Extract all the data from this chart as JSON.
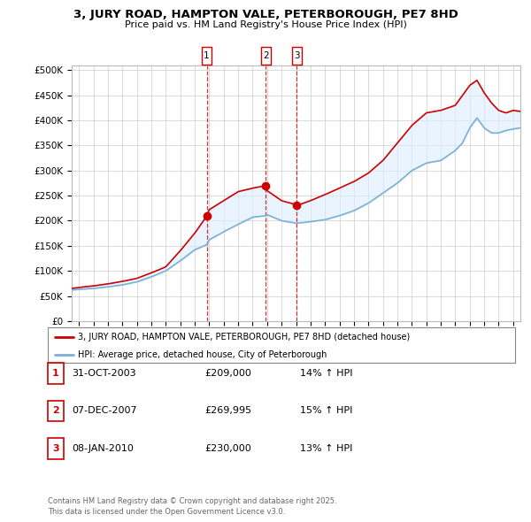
{
  "title": "3, JURY ROAD, HAMPTON VALE, PETERBOROUGH, PE7 8HD",
  "subtitle": "Price paid vs. HM Land Registry's House Price Index (HPI)",
  "legend_label_red": "3, JURY ROAD, HAMPTON VALE, PETERBOROUGH, PE7 8HD (detached house)",
  "legend_label_blue": "HPI: Average price, detached house, City of Peterborough",
  "ylim": [
    0,
    510000
  ],
  "yticks": [
    0,
    50000,
    100000,
    150000,
    200000,
    250000,
    300000,
    350000,
    400000,
    450000,
    500000
  ],
  "ytick_labels": [
    "£0",
    "£50K",
    "£100K",
    "£150K",
    "£200K",
    "£250K",
    "£300K",
    "£350K",
    "£400K",
    "£450K",
    "£500K"
  ],
  "xlim": [
    1994.5,
    2025.5
  ],
  "transactions": [
    {
      "num": "1",
      "date": "31-OCT-2003",
      "price": 209000,
      "hpi_pct": "14%",
      "x": 2003.83
    },
    {
      "num": "2",
      "date": "07-DEC-2007",
      "price": 269995,
      "hpi_pct": "15%",
      "x": 2007.92
    },
    {
      "num": "3",
      "date": "08-JAN-2010",
      "price": 230000,
      "hpi_pct": "13%",
      "x": 2010.04
    }
  ],
  "transaction_table": [
    [
      "1",
      "31-OCT-2003",
      "£209,000",
      "14% ↑ HPI"
    ],
    [
      "2",
      "07-DEC-2007",
      "£269,995",
      "15% ↑ HPI"
    ],
    [
      "3",
      "08-JAN-2010",
      "£230,000",
      "13% ↑ HPI"
    ]
  ],
  "footer": "Contains HM Land Registry data © Crown copyright and database right 2025.\nThis data is licensed under the Open Government Licence v3.0.",
  "color_red": "#cc0000",
  "color_blue": "#7bafd4",
  "color_vline": "#cc0000",
  "color_fill": "#ddeeff",
  "background_color": "#ffffff",
  "grid_color": "#cccccc",
  "hpi_ctrl_x": [
    1994.5,
    1995,
    1996,
    1997,
    1998,
    1999,
    2000,
    2001,
    2002,
    2003,
    2003.83,
    2004,
    2005,
    2006,
    2007,
    2007.92,
    2008,
    2009,
    2010,
    2010.04,
    2011,
    2012,
    2013,
    2014,
    2015,
    2016,
    2017,
    2018,
    2019,
    2020,
    2021,
    2021.5,
    2022,
    2022.5,
    2023,
    2023.5,
    2024,
    2024.5,
    2025,
    2025.5
  ],
  "hpi_ctrl_y": [
    62000,
    63000,
    65000,
    68000,
    72000,
    78000,
    88000,
    100000,
    120000,
    142000,
    152000,
    162000,
    178000,
    193000,
    207000,
    210000,
    212000,
    200000,
    195000,
    195000,
    198000,
    202000,
    210000,
    220000,
    235000,
    255000,
    275000,
    300000,
    315000,
    320000,
    340000,
    355000,
    385000,
    405000,
    385000,
    375000,
    375000,
    380000,
    383000,
    385000
  ],
  "price_ctrl_x": [
    1994.5,
    1995,
    1996,
    1997,
    1998,
    1999,
    2000,
    2001,
    2002,
    2003,
    2003.83,
    2004,
    2005,
    2006,
    2007,
    2007.92,
    2008,
    2009,
    2010,
    2010.04,
    2011,
    2012,
    2013,
    2014,
    2015,
    2016,
    2017,
    2018,
    2019,
    2020,
    2021,
    2021.5,
    2022,
    2022.5,
    2023,
    2023.5,
    2024,
    2024.5,
    2025,
    2025.5
  ],
  "price_ctrl_y": [
    65000,
    67000,
    70000,
    74000,
    79000,
    85000,
    96000,
    108000,
    140000,
    175000,
    209000,
    222000,
    240000,
    258000,
    265000,
    269995,
    260000,
    240000,
    232000,
    230000,
    240000,
    252000,
    265000,
    278000,
    295000,
    320000,
    355000,
    390000,
    415000,
    420000,
    430000,
    450000,
    470000,
    480000,
    455000,
    435000,
    420000,
    415000,
    420000,
    418000
  ]
}
